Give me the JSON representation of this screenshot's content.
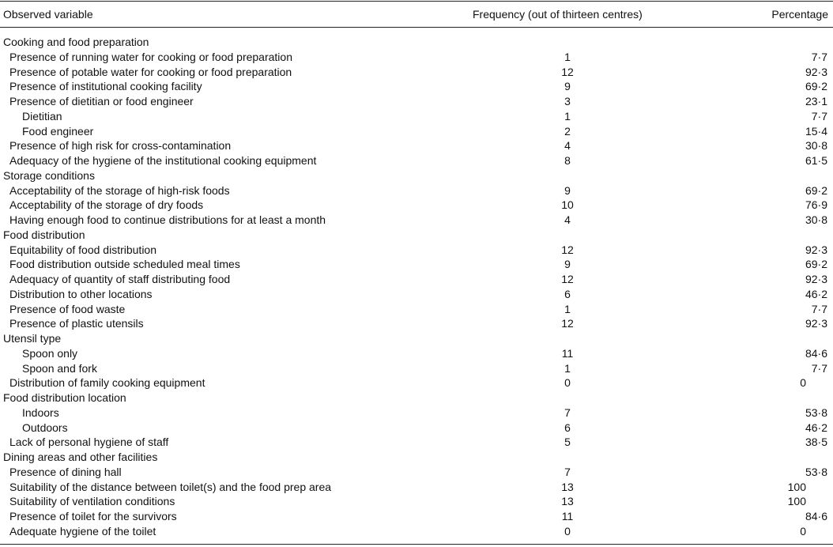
{
  "table": {
    "header": [
      "Observed variable",
      "Frequency (out of thirteen centres)",
      "Percentage"
    ],
    "sections": [
      {
        "title": "Cooking and food preparation",
        "rows": [
          {
            "label": "Presence of running water for cooking or food preparation",
            "frequency": 1,
            "percentage": "7·7"
          },
          {
            "label": "Presence of potable water for cooking or food preparation",
            "frequency": 12,
            "percentage": "92·3"
          },
          {
            "label": "Presence of institutional cooking facility",
            "frequency": 9,
            "percentage": "69·2"
          },
          {
            "label": "Presence of dietitian or food engineer",
            "frequency": 3,
            "percentage": "23·1",
            "subrows": [
              {
                "label": "Dietitian",
                "frequency": 1,
                "percentage": "7·7"
              },
              {
                "label": "Food engineer",
                "frequency": 2,
                "percentage": "15·4"
              }
            ]
          },
          {
            "label": "Presence of high risk for cross-contamination",
            "frequency": 4,
            "percentage": "30·8"
          },
          {
            "label": "Adequacy of the hygiene of the institutional cooking equipment",
            "frequency": 8,
            "percentage": "61·5"
          }
        ]
      },
      {
        "title": "Storage conditions",
        "rows": [
          {
            "label": "Acceptability of the storage of high-risk foods",
            "frequency": 9,
            "percentage": "69·2"
          },
          {
            "label": "Acceptability of the storage of dry foods",
            "frequency": 10,
            "percentage": "76·9"
          },
          {
            "label": "Having enough food to continue distributions for at least a month",
            "frequency": 4,
            "percentage": "30·8"
          }
        ]
      },
      {
        "title": "Food distribution",
        "rows": [
          {
            "label": "Equitability of food distribution",
            "frequency": 12,
            "percentage": "92·3"
          },
          {
            "label": "Food distribution outside scheduled meal times",
            "frequency": 9,
            "percentage": "69·2"
          },
          {
            "label": "Adequacy of quantity of staff distributing food",
            "frequency": 12,
            "percentage": "92·3"
          },
          {
            "label": "Distribution to other locations",
            "frequency": 6,
            "percentage": "46·2"
          },
          {
            "label": "Presence of food waste",
            "frequency": 1,
            "percentage": "7·7"
          },
          {
            "label": "Presence of plastic utensils",
            "frequency": 12,
            "percentage": "92·3"
          },
          {
            "label": "Utensil type",
            "subrows": [
              {
                "label": "Spoon only",
                "frequency": 11,
                "percentage": "84·6"
              },
              {
                "label": "Spoon and fork",
                "frequency": 1,
                "percentage": "7·7"
              }
            ]
          },
          {
            "label": "Distribution of family cooking equipment",
            "frequency": 0,
            "percentage": "0"
          },
          {
            "label": "Food distribution location",
            "subrows": [
              {
                "label": "Indoors",
                "frequency": 7,
                "percentage": "53·8"
              },
              {
                "label": "Outdoors",
                "frequency": 6,
                "percentage": "46·2"
              }
            ]
          },
          {
            "label": "Lack of personal hygiene of staff",
            "frequency": 5,
            "percentage": "38·5"
          }
        ]
      },
      {
        "title": "Dining areas and other facilities",
        "rows": [
          {
            "label": "Presence of dining hall",
            "frequency": 7,
            "percentage": "53·8"
          },
          {
            "label": "Suitability of the distance between toilet(s) and the food prep area",
            "frequency": 13,
            "percentage": "100"
          },
          {
            "label": "Suitability of ventilation conditions",
            "frequency": 13,
            "percentage": "100"
          },
          {
            "label": "Presence of toilet for the survivors",
            "frequency": 11,
            "percentage": "84·6"
          },
          {
            "label": "Adequate hygiene of the toilet",
            "frequency": 0,
            "percentage": "0"
          }
        ]
      }
    ]
  }
}
